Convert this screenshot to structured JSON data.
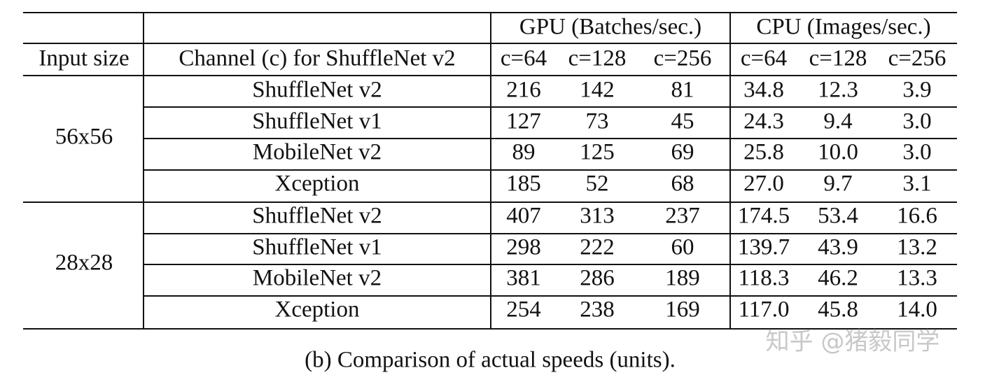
{
  "table": {
    "header": [
      [
        "",
        "",
        "GPU (Batches/sec.)",
        "CPU (Images/sec.)"
      ],
      [
        "Input size",
        "Channel (c) for ShuffleNet v2",
        "c=64",
        "c=128",
        "c=256",
        "c=64",
        "c=128",
        "c=256"
      ]
    ],
    "groups": [
      {
        "input_size": "56x56",
        "rows": [
          [
            "ShuffleNet v2",
            "216",
            "142",
            "81",
            "34.8",
            "12.3",
            "3.9"
          ],
          [
            "ShuffleNet v1",
            "127",
            "73",
            "45",
            "24.3",
            "9.4",
            "3.0"
          ],
          [
            "MobileNet v2",
            "89",
            "125",
            "69",
            "25.8",
            "10.0",
            "3.0"
          ],
          [
            "Xception",
            "185",
            "52",
            "68",
            "27.0",
            "9.7",
            "3.1"
          ]
        ]
      },
      {
        "input_size": "28x28",
        "rows": [
          [
            "ShuffleNet v2",
            "407",
            "313",
            "237",
            "174.5",
            "53.4",
            "16.6"
          ],
          [
            "ShuffleNet v1",
            "298",
            "222",
            "60",
            "139.7",
            "43.9",
            "13.2"
          ],
          [
            "MobileNet v2",
            "381",
            "286",
            "189",
            "118.3",
            "46.2",
            "13.3"
          ],
          [
            "Xception",
            "254",
            "238",
            "169",
            "117.0",
            "45.8",
            "14.0"
          ]
        ]
      }
    ],
    "caption": "(b) Comparison of actual speeds (units).",
    "watermark": "知乎 @猪毅同学"
  }
}
